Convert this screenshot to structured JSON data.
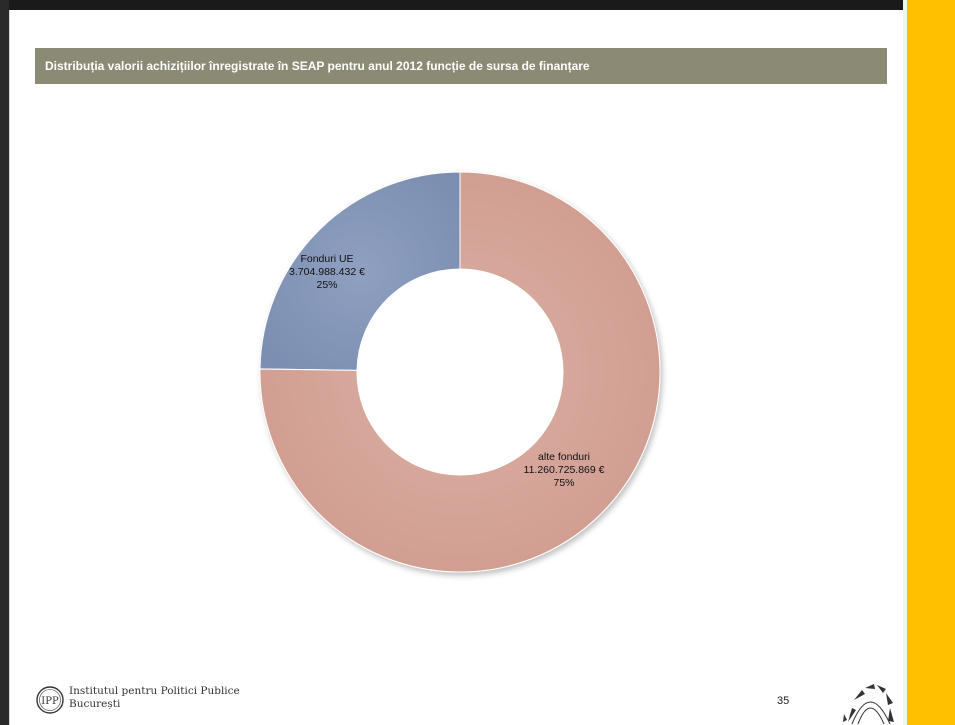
{
  "title": "Distribuția valorii achizițiilor înregistrate în SEAP pentru anul 2012 funcție de sursa de finanțare",
  "colors": {
    "title_bar": "#8b8a74",
    "accent": "#ffc000"
  },
  "chart_data": {
    "type": "pie",
    "donut": true,
    "slices": [
      {
        "name": "Fonduri UE",
        "value_text": "3.704.988.432 €",
        "value": 3704988432,
        "percent_text": "25%",
        "color": "#8497b8"
      },
      {
        "name": "alte fonduri",
        "value_text": "11.260.725.869 €",
        "value": 11260725869,
        "percent_text": "75%",
        "color": "#d4a396"
      }
    ]
  },
  "footer": {
    "logo_line1": "Institutul pentru Politici Publice",
    "logo_line2": "București",
    "page_number": "35"
  }
}
